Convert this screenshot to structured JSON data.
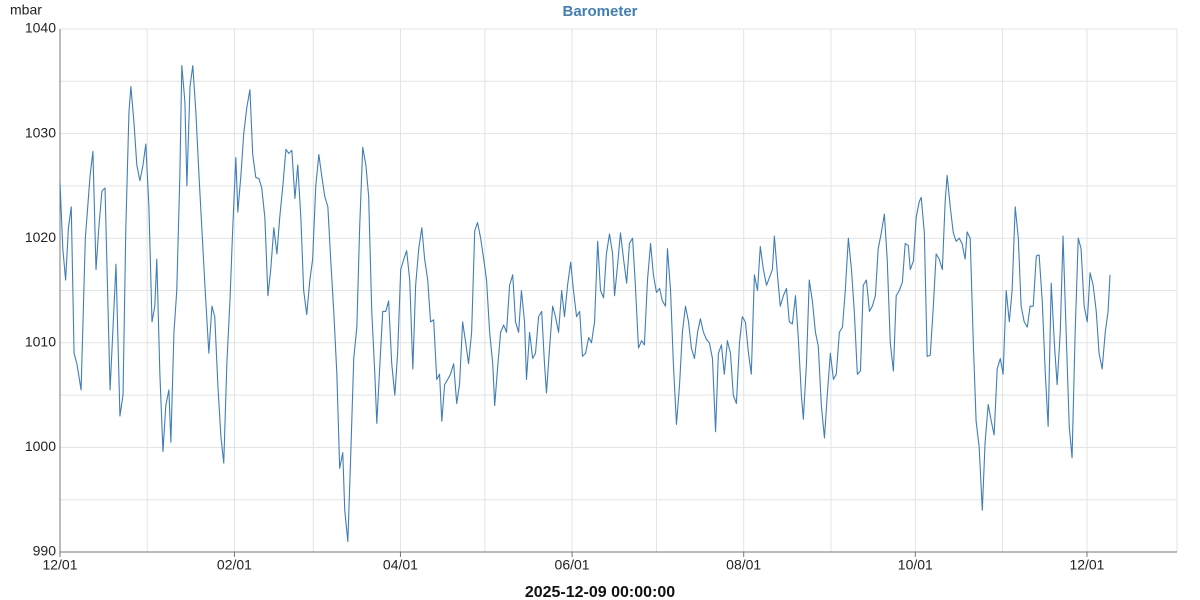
{
  "chart_data": {
    "type": "line",
    "title": "Barometer",
    "y_label": "mbar",
    "x_label": "2025-12-09 00:00:00",
    "color": "#3f7fb6",
    "grid": true,
    "xlim": [
      0,
      397
    ],
    "ylim": [
      990,
      1040
    ],
    "xticks": [
      {
        "value": 0,
        "label": "12/01"
      },
      {
        "value": 62,
        "label": "02/01"
      },
      {
        "value": 121,
        "label": "04/01"
      },
      {
        "value": 182,
        "label": "06/01"
      },
      {
        "value": 243,
        "label": "08/01"
      },
      {
        "value": 304,
        "label": "10/01"
      },
      {
        "value": 365,
        "label": "12/01"
      }
    ],
    "x_minor_ticks": [
      31,
      90,
      151,
      212,
      274,
      335
    ],
    "yticks": [
      990,
      1000,
      1010,
      1020,
      1030,
      1040
    ],
    "y_minor_ticks": [
      995,
      1005,
      1015,
      1025,
      1035
    ],
    "x": [
      0,
      1,
      2,
      3,
      4,
      5,
      6,
      7.5,
      9,
      10.7,
      11.7,
      12.8,
      13.8,
      14.9,
      16,
      17.8,
      19.9,
      21.3,
      22.4,
      23.4,
      24.5,
      25.2,
      26.3,
      27.3,
      28.4,
      29.5,
      30.5,
      31.6,
      32.7,
      33.7,
      34.4,
      35.5,
      36.6,
      37.6,
      38.7,
      39.4,
      40.5,
      41.5,
      42.6,
      43.3,
      44.4,
      45.1,
      46.2,
      47.2,
      48.3,
      49.4,
      50.4,
      51.5,
      52.9,
      54,
      55,
      56.1,
      57.2,
      58.2,
      59.3,
      60.4,
      61.4,
      62.5,
      63.2,
      64.3,
      65.3,
      66.4,
      67.5,
      68.5,
      69.6,
      70.7,
      71.7,
      72.8,
      73.9,
      74.9,
      76,
      77.1,
      78.1,
      79.2,
      80.3,
      81.3,
      82.4,
      83.5,
      84.5,
      85.6,
      86.6,
      87.7,
      88.8,
      89.8,
      90.9,
      92,
      93,
      94.1,
      95.2,
      96.2,
      97.3,
      98.4,
      99.4,
      100.5,
      101.2,
      102.3,
      103.3,
      104.4,
      105.5,
      106.5,
      107.6,
      108.7,
      109.7,
      110.8,
      111.9,
      112.6,
      113.6,
      114.7,
      115.8,
      116.8,
      117.9,
      119,
      120,
      121.1,
      122.2,
      123.2,
      124.3,
      125.4,
      126.4,
      127.5,
      128.6,
      129.6,
      130.7,
      131.7,
      132.8,
      133.9,
      134.9,
      135.7,
      136.7,
      137.8,
      138.8,
      139.9,
      141,
      142,
      143.1,
      144.2,
      145.2,
      146.3,
      147.4,
      148.4,
      149.5,
      150.6,
      151.6,
      152.7,
      153.8,
      154.5,
      155.5,
      156.6,
      157.7,
      158.7,
      159.8,
      160.9,
      161.9,
      163,
      164,
      165.1,
      165.8,
      166.9,
      168,
      169,
      170.1,
      171.2,
      172.2,
      172.9,
      174,
      175.1,
      176.1,
      177.2,
      178.3,
      179.3,
      180.4,
      181.5,
      182.5,
      183.6,
      184.7,
      185.7,
      186.8,
      187.9,
      188.9,
      190,
      191.1,
      192.1,
      193.2,
      194.2,
      195.3,
      196.4,
      197.1,
      198.2,
      199.2,
      200.3,
      201.4,
      202.4,
      203.5,
      204.5,
      205.6,
      206.7,
      207.7,
      208.8,
      209.9,
      210.9,
      212,
      213.1,
      214.1,
      215.2,
      215.9,
      217,
      218,
      219.1,
      220.2,
      221.2,
      222.3,
      223.4,
      224.4,
      225.5,
      226.6,
      227.6,
      228.7,
      229.8,
      230.8,
      231.9,
      233,
      234,
      235.1,
      236.1,
      237.2,
      238.3,
      239.3,
      240.4,
      241.5,
      242.5,
      243.6,
      244.7,
      245.7,
      246.8,
      247.9,
      248.9,
      250,
      251.1,
      252.1,
      253.2,
      253.9,
      255,
      256,
      257.1,
      258.2,
      259.2,
      260.3,
      261.4,
      262.4,
      263.5,
      264.2,
      265.3,
      266.3,
      267.4,
      268.5,
      269.5,
      270.6,
      271.7,
      272.7,
      273.8,
      274.9,
      275.9,
      277,
      278.1,
      279.1,
      280.2,
      281.3,
      282.3,
      283.4,
      284.5,
      285.5,
      286.6,
      287.7,
      288.7,
      289.8,
      290.8,
      291.9,
      293,
      294,
      295.1,
      296.2,
      297.2,
      298.3,
      299.4,
      300.4,
      301.5,
      302.2,
      303.3,
      304.3,
      305.4,
      306.1,
      307.2,
      308.2,
      309.3,
      310.4,
      311.4,
      312.5,
      313.6,
      314.6,
      315.3,
      316.4,
      317.5,
      318.5,
      319.6,
      320.6,
      321.7,
      322.4,
      323.5,
      324.6,
      325.6,
      326.7,
      327.8,
      328.8,
      329.9,
      331,
      332,
      333.1,
      334.2,
      335.2,
      336.3,
      337.4,
      338.4,
      339.5,
      340.6,
      341.6,
      342.7,
      343.8,
      344.8,
      345.9,
      347,
      348,
      349.1,
      350.2,
      351.2,
      352.3,
      353.4,
      354.4,
      355.5,
      356.5,
      357.6,
      358.7,
      359.7,
      360.8,
      361.9,
      362.9,
      364,
      365.1,
      366.1,
      367.2,
      368.3,
      369.3,
      370.4,
      371.5,
      372.5,
      373.2
    ],
    "values": [
      1025.3,
      1019,
      1016,
      1021,
      1023,
      1009,
      1008,
      1005.5,
      1020,
      1026,
      1028.3,
      1017,
      1021,
      1024.5,
      1024.8,
      1005.5,
      1017.5,
      1003,
      1005,
      1021,
      1032,
      1034.5,
      1031,
      1027,
      1025.5,
      1027,
      1029,
      1023,
      1012,
      1013.5,
      1018,
      1007,
      999.6,
      1004,
      1005.5,
      1000.5,
      1011,
      1015,
      1026,
      1036.5,
      1033,
      1025,
      1034.5,
      1036.5,
      1032,
      1026,
      1021,
      1015.5,
      1009,
      1013.5,
      1012.5,
      1006,
      1001,
      998.5,
      1008,
      1014,
      1021,
      1027.7,
      1022.5,
      1026,
      1030,
      1032.5,
      1034.2,
      1028,
      1025.8,
      1025.7,
      1024.8,
      1022,
      1014.5,
      1017,
      1021,
      1018.5,
      1022,
      1025,
      1028.5,
      1028.1,
      1028.4,
      1023.8,
      1027,
      1022,
      1015,
      1012.7,
      1016,
      1018,
      1025,
      1028,
      1026,
      1024,
      1023,
      1018,
      1013,
      1007,
      998,
      999.5,
      994,
      991,
      999,
      1008.5,
      1011.5,
      1021,
      1028.7,
      1027,
      1024,
      1013,
      1007,
      1002.3,
      1007.5,
      1013,
      1013,
      1014,
      1008,
      1005,
      1009,
      1017,
      1018,
      1018.8,
      1016,
      1007.5,
      1015.5,
      1019,
      1021,
      1018,
      1016,
      1012,
      1012.2,
      1006.5,
      1007,
      1002.5,
      1006,
      1006.5,
      1007,
      1008,
      1004.2,
      1006,
      1012,
      1010,
      1008,
      1011,
      1020.7,
      1021.5,
      1020,
      1018,
      1016,
      1011,
      1008,
      1004,
      1007.5,
      1011,
      1011.7,
      1011,
      1015.5,
      1016.5,
      1012,
      1011,
      1015,
      1012,
      1006.5,
      1011,
      1008.5,
      1009,
      1012.5,
      1013,
      1008,
      1005.2,
      1009.5,
      1013.5,
      1012.5,
      1011,
      1015,
      1012.5,
      1015.5,
      1017.7,
      1015,
      1012.5,
      1013,
      1008.7,
      1009,
      1010.5,
      1010,
      1012,
      1019.7,
      1015,
      1014.3,
      1018.5,
      1020.4,
      1018.5,
      1014.5,
      1017.5,
      1020.5,
      1018,
      1015.7,
      1019.5,
      1020,
      1015.5,
      1009.5,
      1010.2,
      1009.8,
      1016,
      1019.5,
      1016.5,
      1014.8,
      1015.2,
      1014,
      1013.5,
      1019,
      1015,
      1008,
      1002.2,
      1006,
      1011,
      1013.5,
      1012,
      1009.5,
      1008.5,
      1011,
      1012.3,
      1011,
      1010.3,
      1010,
      1008.5,
      1001.5,
      1009,
      1009.8,
      1007,
      1010.2,
      1009,
      1005,
      1004.2,
      1010,
      1012.5,
      1012,
      1009,
      1007,
      1016.5,
      1015,
      1019.2,
      1017,
      1015.5,
      1016.2,
      1017,
      1020.2,
      1016.5,
      1013.5,
      1014.5,
      1015.2,
      1012,
      1011.8,
      1014.5,
      1010.5,
      1005,
      1002.7,
      1008,
      1016,
      1014,
      1011,
      1009.7,
      1004,
      1000.9,
      1005,
      1009,
      1006.5,
      1007,
      1011,
      1011.5,
      1015,
      1020,
      1017,
      1013,
      1007,
      1007.3,
      1015.5,
      1016,
      1013,
      1013.5,
      1014.5,
      1019,
      1020.5,
      1022.3,
      1018,
      1010,
      1007.3,
      1014.5,
      1015,
      1015.8,
      1019.5,
      1019.3,
      1017,
      1017.8,
      1022,
      1023.5,
      1023.9,
      1020.5,
      1008.7,
      1008.8,
      1013.5,
      1018.5,
      1018,
      1017,
      1023.5,
      1026,
      1023,
      1020.5,
      1019.7,
      1020,
      1019.5,
      1018,
      1020.6,
      1020,
      1010,
      1002.5,
      1000,
      994,
      1000.5,
      1004.1,
      1002.5,
      1001.2,
      1007.5,
      1008.5,
      1007,
      1015,
      1012,
      1015,
      1023,
      1020,
      1013.5,
      1012,
      1011.5,
      1013.5,
      1013.5,
      1018.3,
      1018.4,
      1014,
      1007,
      1002,
      1015.7,
      1010,
      1006,
      1011,
      1020.2,
      1011,
      1002,
      999,
      1011,
      1020,
      1019,
      1013.5,
      1012,
      1016.7,
      1015.5,
      1013,
      1009,
      1007.5,
      1011,
      1013,
      1016.5
    ]
  }
}
